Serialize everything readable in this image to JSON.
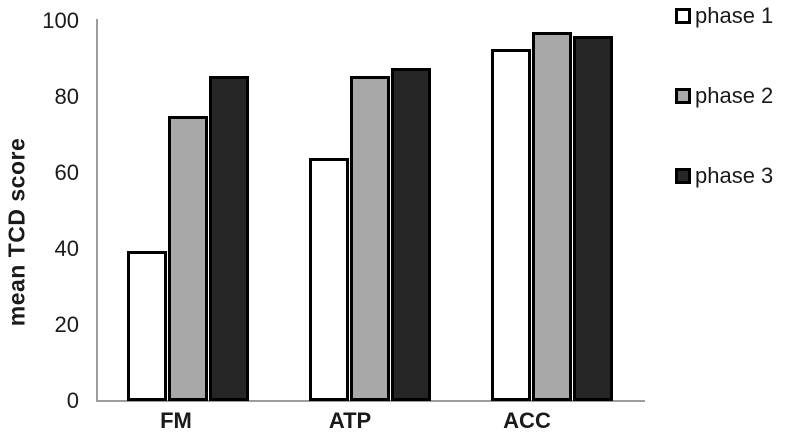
{
  "chart_data": {
    "type": "bar",
    "title": "",
    "xlabel": "",
    "ylabel": "mean TCD score",
    "categories": [
      "FM",
      "ATP",
      "ACC"
    ],
    "series": [
      {
        "name": "phase 1",
        "color": "#ffffff",
        "values": [
          39.5,
          64,
          92.5
        ]
      },
      {
        "name": "phase 2",
        "color": "#a8a8a8",
        "values": [
          75,
          85.5,
          97
        ]
      },
      {
        "name": "phase 3",
        "color": "#262626",
        "values": [
          85.5,
          87.5,
          96
        ]
      }
    ],
    "ylim": [
      0,
      100
    ],
    "yticks": [
      0,
      20,
      40,
      60,
      80,
      100
    ],
    "grid": false,
    "legend_position": "right",
    "bar_border_color": "#000000",
    "axis_color": "#9d9d9d"
  }
}
